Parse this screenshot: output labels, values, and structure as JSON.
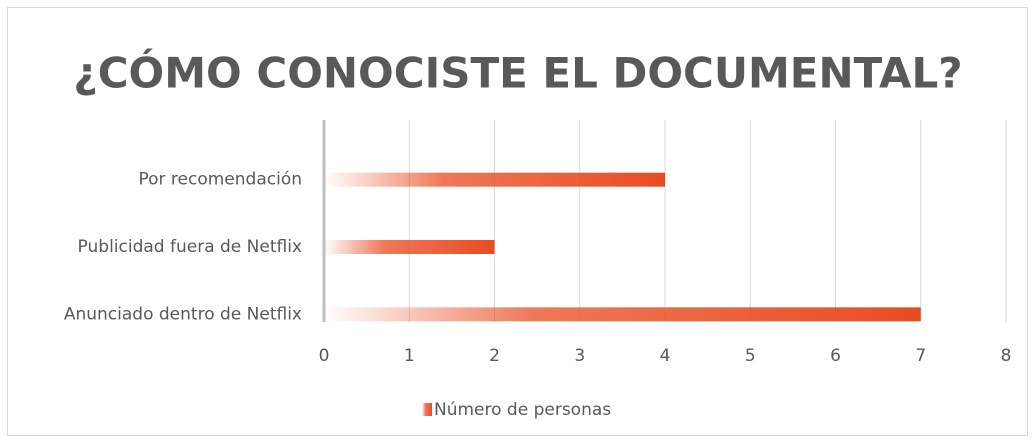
{
  "chart_data": {
    "type": "bar",
    "orientation": "horizontal",
    "title": "¿CÓMO CONOCISTE EL DOCUMENTAL?",
    "categories": [
      "Por recomendación",
      "Publicidad fuera de Netflix",
      "Anunciado dentro de Netflix"
    ],
    "series": [
      {
        "name": "Número de personas",
        "color": "#e84c22",
        "values": [
          4,
          2,
          7
        ]
      }
    ],
    "xlim": [
      0,
      8
    ],
    "xticks": [
      0,
      1,
      2,
      3,
      4,
      5,
      6,
      7,
      8
    ],
    "grid": true,
    "legend": "bottom"
  }
}
